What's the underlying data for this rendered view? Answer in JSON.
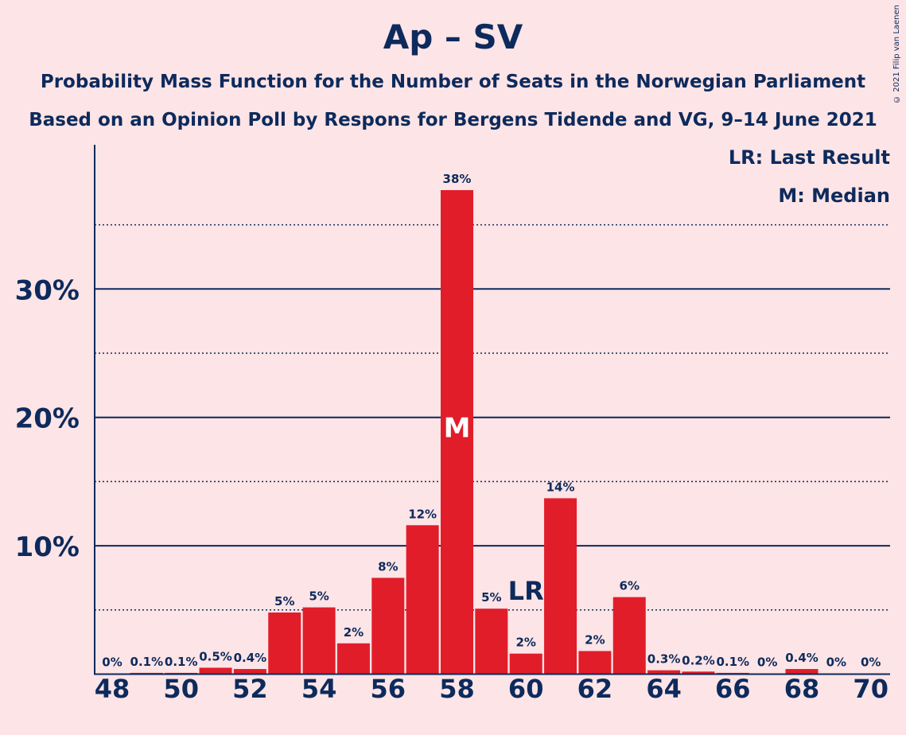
{
  "title": "Ap – SV",
  "subtitle_line1": "Probability Mass Function for the Number of Seats in the Norwegian Parliament",
  "subtitle_line2": "Based on an Opinion Poll by Respons for Bergens Tidende and VG, 9–14 June 2021",
  "copyright": "© 2021 Filip van Laenen",
  "legend": {
    "last_result": "LR: Last Result",
    "median": "M: Median"
  },
  "colors": {
    "background": "#fde4e6",
    "bar": "#e11d2a",
    "text": "#0d2a5c"
  },
  "chart_data": {
    "type": "bar",
    "x": [
      48,
      49,
      50,
      51,
      52,
      53,
      54,
      55,
      56,
      57,
      58,
      59,
      60,
      61,
      62,
      63,
      64,
      65,
      66,
      67,
      68,
      69,
      70
    ],
    "values": [
      0,
      0.1,
      0.1,
      0.5,
      0.4,
      4.8,
      5.2,
      2.4,
      7.5,
      11.6,
      37.7,
      5.1,
      1.6,
      13.7,
      1.8,
      6.0,
      0.3,
      0.2,
      0.1,
      0,
      0.4,
      0,
      0
    ],
    "data_labels": [
      "0%",
      "0.1%",
      "0.1%",
      "0.5%",
      "0.4%",
      "5%",
      "5%",
      "2%",
      "8%",
      "12%",
      "38%",
      "5%",
      "2%",
      "14%",
      "2%",
      "6%",
      "0.3%",
      "0.2%",
      "0.1%",
      "0%",
      "0.4%",
      "0%",
      "0%"
    ],
    "x_ticks": [
      "48",
      "50",
      "52",
      "54",
      "56",
      "58",
      "60",
      "62",
      "64",
      "66",
      "68",
      "70"
    ],
    "y_ticks": [
      "10%",
      "20%",
      "30%"
    ],
    "y_tick_values": [
      10,
      20,
      30
    ],
    "minor_grid_values": [
      5,
      15,
      25,
      35
    ],
    "ylim": [
      0,
      40
    ],
    "median_seat": 58,
    "median_label": "M",
    "last_result_seat": 60,
    "last_result_label": "LR"
  }
}
